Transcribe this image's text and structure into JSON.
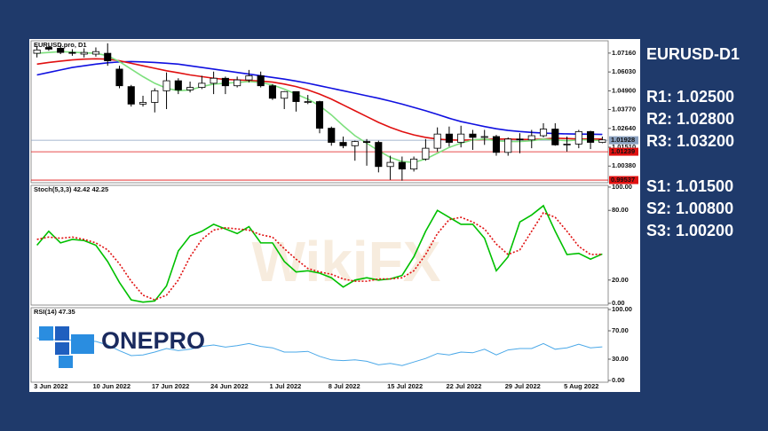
{
  "chart_data": [
    {
      "type": "candlestick",
      "title": "EURUSD.pro, D1",
      "categories": [
        null,
        null,
        "3 Jun 2022",
        null,
        null,
        null,
        null,
        "10 Jun 2022",
        null,
        null,
        null,
        null,
        "17 Jun 2022",
        null,
        null,
        null,
        null,
        "24 Jun 2022",
        null,
        null,
        null,
        null,
        "1 Jul 2022",
        null,
        null,
        null,
        null,
        "8 Jul 2022",
        null,
        null,
        null,
        null,
        "15 Jul 2022",
        null,
        null,
        null,
        null,
        "22 Jul 2022",
        null,
        null,
        null,
        null,
        "29 Jul 2022",
        null,
        null,
        null,
        null,
        "5 Aug 2022",
        null
      ],
      "open": [
        1.0715,
        1.075,
        1.0745,
        1.072,
        1.071,
        1.071,
        1.0715,
        1.062,
        1.0515,
        1.041,
        1.042,
        1.049,
        1.055,
        1.0495,
        1.051,
        1.0535,
        1.0565,
        1.052,
        1.0555,
        1.058,
        1.052,
        1.0445,
        1.0485,
        1.0425,
        1.0425,
        1.0265,
        1.018,
        1.016,
        1.0185,
        1.018,
        1.0035,
        1.006,
        1.002,
        1.008,
        1.0145,
        1.023,
        1.018,
        1.023,
        1.021,
        1.0215,
        1.012,
        1.02,
        1.0195,
        1.022,
        1.026,
        1.0165,
        1.017,
        1.0245,
        1.018
      ],
      "high": [
        1.076,
        1.0765,
        1.0765,
        1.074,
        1.0745,
        1.075,
        1.0775,
        1.064,
        1.0525,
        1.046,
        1.0505,
        1.06,
        1.0565,
        1.0545,
        1.058,
        1.0605,
        1.0575,
        1.0575,
        1.0615,
        1.0605,
        1.053,
        1.0488,
        1.0485,
        1.0465,
        1.043,
        1.0275,
        1.0215,
        1.019,
        1.02,
        1.019,
        1.01,
        1.0095,
        1.0095,
        1.02,
        1.027,
        1.0275,
        1.028,
        1.0255,
        1.0255,
        1.0225,
        1.021,
        1.0235,
        1.0255,
        1.0295,
        1.0295,
        1.0215,
        1.0255,
        1.025,
        1.0215
      ],
      "low": [
        1.069,
        1.073,
        1.071,
        1.07,
        1.069,
        1.0695,
        1.064,
        1.0505,
        1.0395,
        1.0395,
        1.036,
        1.038,
        1.047,
        1.048,
        1.05,
        1.047,
        1.047,
        1.051,
        1.054,
        1.051,
        1.0435,
        1.038,
        1.0365,
        1.041,
        1.0235,
        1.016,
        1.0145,
        1.007,
        1.004,
        1.0,
        0.9955,
        0.995,
        1.0005,
        1.007,
        1.0125,
        1.0155,
        1.015,
        1.0135,
        1.0165,
        1.01,
        1.01,
        1.0115,
        1.0145,
        1.021,
        1.016,
        1.0125,
        1.0145,
        1.014,
        1.0175
      ],
      "close": [
        1.0735,
        1.074,
        1.072,
        1.0715,
        1.072,
        1.0725,
        1.067,
        1.052,
        1.041,
        1.042,
        1.049,
        1.055,
        1.0495,
        1.051,
        1.0535,
        1.0565,
        1.052,
        1.0555,
        1.058,
        1.052,
        1.0445,
        1.0485,
        1.0425,
        1.0425,
        1.0265,
        1.018,
        1.016,
        1.0185,
        1.018,
        1.0035,
        1.006,
        1.002,
        1.008,
        1.0145,
        1.023,
        1.018,
        1.023,
        1.021,
        1.0215,
        1.012,
        1.02,
        1.0195,
        1.022,
        1.026,
        1.0165,
        1.017,
        1.0245,
        1.018,
        1.0195
      ],
      "up_color": "#ffffff",
      "down_color": "#000000",
      "series": [
        {
          "color": "#1010e0",
          "values": [
            1.0585,
            1.06,
            1.0615,
            1.063,
            1.064,
            1.065,
            1.0658,
            1.0663,
            1.0665,
            1.0663,
            1.066,
            1.0655,
            1.065,
            1.064,
            1.063,
            1.062,
            1.061,
            1.06,
            1.059,
            1.058,
            1.057,
            1.056,
            1.0548,
            1.0535,
            1.052,
            1.0505,
            1.049,
            1.0475,
            1.046,
            1.0445,
            1.0428,
            1.041,
            1.039,
            1.037,
            1.0348,
            1.0325,
            1.0305,
            1.029,
            1.0275,
            1.0262,
            1.0252,
            1.0245,
            1.024,
            1.0236,
            1.0233,
            1.0231,
            1.023,
            1.0229,
            1.0228
          ]
        },
        {
          "color": "#e01010",
          "values": [
            1.065,
            1.066,
            1.0668,
            1.0675,
            1.068,
            1.0682,
            1.068,
            1.067,
            1.0655,
            1.064,
            1.0625,
            1.061,
            1.0598,
            1.0585,
            1.0575,
            1.0565,
            1.0558,
            1.0555,
            1.0552,
            1.0548,
            1.0542,
            1.053,
            1.0515,
            1.0495,
            1.047,
            1.044,
            1.0405,
            1.037,
            1.0335,
            1.03,
            1.027,
            1.0245,
            1.0225,
            1.021,
            1.02,
            1.0195,
            1.0193,
            1.0195,
            1.0197,
            1.02,
            1.02,
            1.0198,
            1.0197,
            1.02,
            1.0205,
            1.0203,
            1.02,
            1.02,
            1.02
          ]
        },
        {
          "color": "#7ee07e",
          "values": [
            1.0715,
            1.072,
            1.0725,
            1.0722,
            1.0718,
            1.0715,
            1.07,
            1.0665,
            1.062,
            1.0575,
            1.0535,
            1.0505,
            1.049,
            1.0495,
            1.0515,
            1.053,
            1.0535,
            1.054,
            1.0545,
            1.054,
            1.0525,
            1.05,
            1.047,
            1.044,
            1.04,
            1.0345,
            1.028,
            1.022,
            1.0175,
            1.013,
            1.009,
            1.0065,
            1.006,
            1.008,
            1.0115,
            1.015,
            1.0175,
            1.0195,
            1.02,
            1.019,
            1.0185,
            1.0185,
            1.019,
            1.02,
            1.0195,
            1.019,
            1.0195,
            1.0195,
            1.019
          ]
        }
      ],
      "ylim": [
        0.9938,
        1.079
      ],
      "yticks": [
        {
          "value": 1.0716,
          "label": "1.07160"
        },
        {
          "value": 1.0603,
          "label": "1.06030"
        },
        {
          "value": 1.049,
          "label": "1.04900"
        },
        {
          "value": 1.0377,
          "label": "1.03770"
        },
        {
          "value": 1.0264,
          "label": "1.02640"
        },
        {
          "value": 1.0151,
          "label": "1.01510"
        },
        {
          "value": 1.0038,
          "label": "1.00380"
        }
      ],
      "levels": [
        {
          "value": 1.01928,
          "color": "#8aa0bf"
        },
        {
          "value": 1.01239,
          "color": "#e01010"
        },
        {
          "value": 0.99537,
          "color": "#e01010"
        }
      ]
    },
    {
      "type": "line",
      "title": "Stoch(5,3,3) 42.42 42.25",
      "series": [
        {
          "color": "#00c000",
          "values": [
            50,
            62,
            52,
            55,
            54,
            50,
            36,
            18,
            3,
            1,
            2,
            15,
            45,
            58,
            62,
            68,
            64,
            60,
            66,
            52,
            52,
            36,
            27,
            28,
            26,
            22,
            14,
            20,
            22,
            20,
            21,
            24,
            40,
            62,
            80,
            74,
            68,
            68,
            56,
            28,
            40,
            70,
            76,
            84,
            62,
            42,
            43,
            38,
            42.42
          ]
        },
        {
          "color": "#e01010",
          "dashed": true,
          "values": [
            55,
            57,
            56,
            57,
            55,
            52,
            46,
            34,
            19,
            7,
            3,
            7,
            20,
            40,
            55,
            63,
            65,
            64,
            63,
            59,
            57,
            47,
            38,
            30,
            27,
            25,
            21,
            19,
            19,
            21,
            21,
            22,
            28,
            42,
            60,
            72,
            74,
            70,
            64,
            51,
            42,
            46,
            62,
            78,
            74,
            62,
            49,
            42,
            42.25
          ]
        }
      ],
      "ylim": [
        -1.5,
        101.5
      ],
      "yticks": [
        {
          "value": 100,
          "label": "100.00"
        },
        {
          "value": 80,
          "label": "80.00"
        },
        {
          "value": 20,
          "label": "20.00"
        },
        {
          "value": 0,
          "label": "0.00"
        }
      ]
    },
    {
      "type": "line",
      "title": "RSI(14) 47.35",
      "series": [
        {
          "color": "#4aa8e8",
          "values": [
            60,
            58,
            57,
            57,
            56,
            55,
            50,
            42,
            35,
            36,
            40,
            45,
            42,
            44,
            48,
            50,
            47,
            49,
            52,
            48,
            46,
            40,
            40,
            41,
            34,
            29,
            28,
            29,
            27,
            22,
            24,
            21,
            26,
            31,
            38,
            36,
            40,
            39,
            44,
            36,
            43,
            45,
            45,
            52,
            44,
            46,
            51,
            46,
            47.35
          ]
        }
      ],
      "ylim": [
        -2.5,
        102.5
      ],
      "yticks": [
        {
          "value": 100,
          "label": "100.00"
        },
        {
          "value": 70,
          "label": "70.00"
        },
        {
          "value": 30,
          "label": "30.00"
        },
        {
          "value": 0,
          "label": "0.00"
        }
      ]
    }
  ],
  "sidebar": {
    "symbol": "EURUSD-D1",
    "resistance": [
      "R1: 1.02500",
      "R2: 1.02800",
      "R3: 1.03200"
    ],
    "support": [
      "S1: 1.01500",
      "S2: 1.00800",
      "S3: 1.00200"
    ]
  },
  "logo": "ONEPRO",
  "watermark": "WikiFX"
}
